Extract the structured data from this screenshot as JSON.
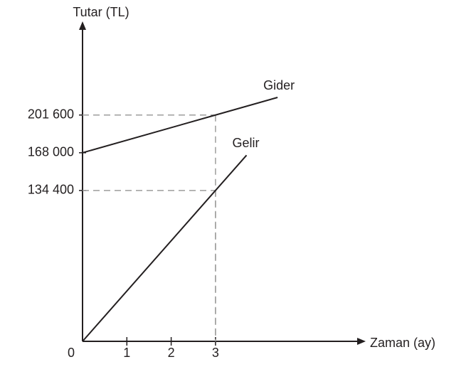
{
  "chart_data": {
    "type": "line",
    "y_label": "Tutar (TL)",
    "x_label": "Zaman (ay)",
    "xlim": [
      0,
      6.3
    ],
    "ylim": [
      0,
      280000
    ],
    "xticks": [
      0,
      1,
      2,
      3
    ],
    "yticks": [
      {
        "value": 134400,
        "label": "134 400"
      },
      {
        "value": 168000,
        "label": "168 000"
      },
      {
        "value": 201600,
        "label": "201 600"
      }
    ],
    "color": "#231f20",
    "series": [
      {
        "name": "Gider",
        "x": [
          0,
          3,
          4.4
        ],
        "values": [
          168000,
          201600,
          217280
        ]
      },
      {
        "name": "Gelir",
        "x": [
          0,
          3,
          3.7
        ],
        "values": [
          0,
          134400,
          165760
        ]
      }
    ]
  }
}
